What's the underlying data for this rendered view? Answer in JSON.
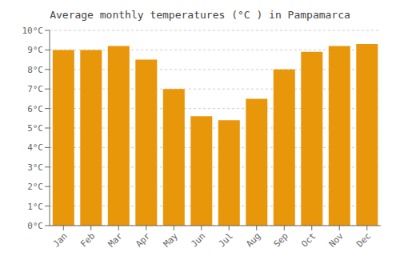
{
  "chart_data": {
    "type": "bar",
    "title": "Average monthly temperatures (°C ) in Pampamarca",
    "categories": [
      "Jan",
      "Feb",
      "Mar",
      "Apr",
      "May",
      "Jun",
      "Jul",
      "Aug",
      "Sep",
      "Oct",
      "Nov",
      "Dec"
    ],
    "values": [
      9.0,
      9.0,
      9.2,
      8.5,
      7.0,
      5.6,
      5.4,
      6.5,
      8.0,
      8.9,
      9.2,
      9.3
    ],
    "color": "#E8960A",
    "ylim": [
      0,
      10
    ],
    "yticks": [
      {
        "value": 0,
        "label": "0°C"
      },
      {
        "value": 1,
        "label": "1°C"
      },
      {
        "value": 2,
        "label": "2°C"
      },
      {
        "value": 3,
        "label": "3°C"
      },
      {
        "value": 4,
        "label": "4°C"
      },
      {
        "value": 5,
        "label": "5°C"
      },
      {
        "value": 6,
        "label": "6°C"
      },
      {
        "value": 7,
        "label": "7°C"
      },
      {
        "value": 8,
        "label": "8°C"
      },
      {
        "value": 9,
        "label": "9°C"
      },
      {
        "value": 10,
        "label": "10°C"
      }
    ],
    "grid": true
  }
}
